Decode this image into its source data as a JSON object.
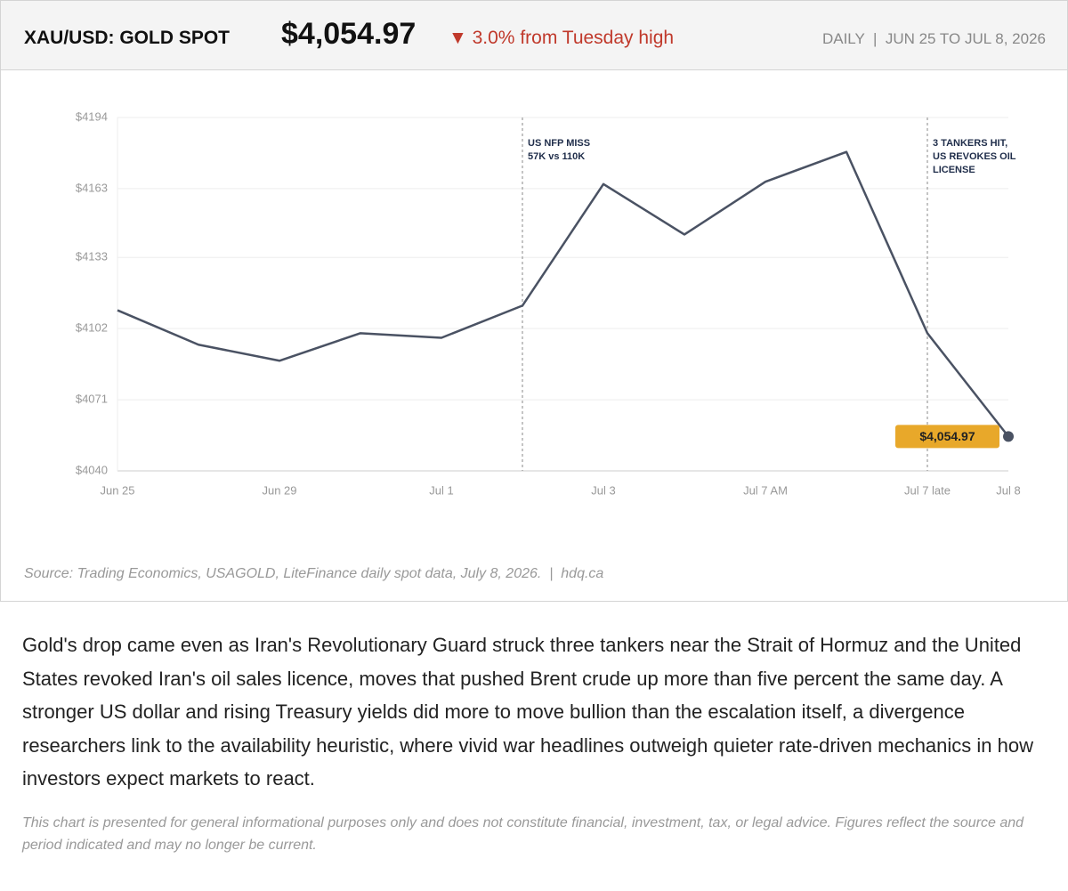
{
  "header": {
    "title": "XAU/USD: GOLD SPOT",
    "price": "$4,054.97",
    "change": "▼ 3.0% from Tuesday high",
    "period": "DAILY  |  JUN 25 TO JUL 8, 2026"
  },
  "chart_data": {
    "type": "line",
    "categories": [
      "Jun 25",
      null,
      "Jun 29",
      null,
      "Jul 1",
      null,
      "Jul 3",
      null,
      "Jul 7 AM",
      null,
      "Jul 7 late",
      "Jul 8"
    ],
    "series": [
      {
        "color": "#4a5263",
        "values": [
          4110,
          4095,
          4088,
          4100,
          4098,
          4112,
          4165,
          4143,
          4166,
          4179,
          4100,
          4054.97
        ],
        "value_labels": [
          null,
          null,
          null,
          null,
          null,
          null,
          null,
          null,
          null,
          null,
          null,
          "$4,054.97"
        ]
      }
    ],
    "ylim": [
      4040,
      4194
    ],
    "yticks": [
      {
        "value": 4040,
        "label": "$4040"
      },
      {
        "value": 4071,
        "label": "$4071"
      },
      {
        "value": 4102,
        "label": "$4102"
      },
      {
        "value": 4133,
        "label": "$4133"
      },
      {
        "value": 4163,
        "label": "$4163"
      },
      {
        "value": 4194,
        "label": "$4194"
      }
    ],
    "grid": true,
    "annotations": [
      {
        "index": 5,
        "lines": [
          "US NFP MISS",
          "57K vs 110K"
        ]
      },
      {
        "index": 10,
        "lines": [
          "3 TANKERS HIT,",
          "US REVOKES OIL",
          "LICENSE"
        ]
      }
    ],
    "source": "Source: Trading Economics, USAGOLD, LiteFinance daily spot data, July 8, 2026.  |  hdq.ca"
  },
  "body": {
    "paragraph": "Gold's drop came even as Iran's Revolutionary Guard struck three tankers near the Strait of Hormuz and the United States revoked Iran's oil sales licence, moves that pushed Brent crude up more than five percent the same day. A stronger US dollar and rising Treasury yields did more to move bullion than the escalation itself, a divergence researchers link to the availability heuristic, where vivid war headlines outweigh quieter rate-driven mechanics in how investors expect markets to react.",
    "disclaimer": "This chart is presented for general informational purposes only and does not constitute financial, investment, tax, or legal advice. Figures reflect the source and period indicated and may no longer be current."
  }
}
